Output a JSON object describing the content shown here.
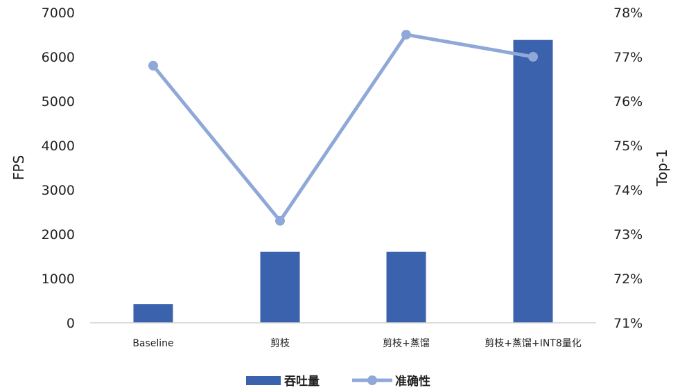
{
  "chart_data": {
    "type": "bar",
    "categories": [
      "Baseline",
      "剪枝",
      "剪枝+蒸馏",
      "剪枝+蒸馏+INT8量化"
    ],
    "series": [
      {
        "name": "吞吐量",
        "type": "bar",
        "axis": "left",
        "values": [
          420,
          1600,
          1600,
          6380
        ],
        "color": "#3b62ad"
      },
      {
        "name": "准确性",
        "type": "line",
        "axis": "right",
        "values": [
          76.8,
          73.3,
          77.5,
          77.0
        ],
        "color": "#8fa8d8"
      }
    ],
    "ylabel": "FPS",
    "y2label": "Top-1",
    "ylim": [
      0,
      7000
    ],
    "y2lim": [
      71,
      78
    ],
    "yticks": [
      "0",
      "1000",
      "2000",
      "3000",
      "4000",
      "5000",
      "6000",
      "7000"
    ],
    "y2ticks": [
      "71%",
      "72%",
      "73%",
      "74%",
      "75%",
      "76%",
      "77%",
      "78%"
    ],
    "legend_position": "bottom",
    "grid": false
  }
}
